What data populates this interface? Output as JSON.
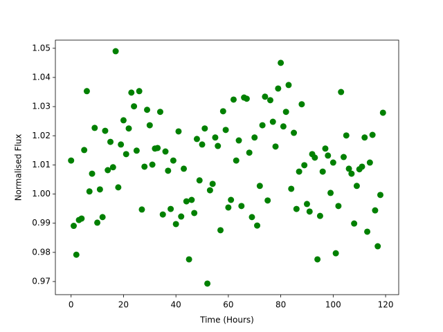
{
  "chart_data": {
    "type": "scatter",
    "color": "#008000",
    "xlabel": "Time (Hours)",
    "ylabel": "Normalised Flux",
    "x": [
      0,
      1,
      2,
      3,
      4,
      5,
      6,
      7,
      8,
      9,
      10,
      11,
      12,
      13,
      14,
      15,
      16,
      17,
      18,
      19,
      20,
      21,
      22,
      23,
      24,
      25,
      26,
      27,
      28,
      29,
      30,
      31,
      32,
      33,
      34,
      35,
      36,
      37,
      38,
      39,
      40,
      41,
      42,
      43,
      44,
      45,
      46,
      47,
      48,
      49,
      50,
      51,
      52,
      53,
      54,
      55,
      56,
      57,
      58,
      59,
      60,
      61,
      62,
      63,
      64,
      65,
      66,
      67,
      68,
      69,
      70,
      71,
      72,
      73,
      74,
      75,
      76,
      77,
      78,
      79,
      80,
      81,
      82,
      83,
      84,
      85,
      86,
      87,
      88,
      89,
      90,
      91,
      92,
      93,
      94,
      95,
      96,
      97,
      98,
      99,
      100,
      101,
      102,
      103,
      104,
      105,
      106,
      107,
      108,
      109,
      110,
      111,
      112,
      113,
      114,
      115,
      116,
      117,
      118,
      119
    ],
    "y": [
      1.0115,
      0.9891,
      0.9792,
      0.9911,
      0.9916,
      1.0151,
      1.0353,
      1.0009,
      1.007,
      1.0227,
      0.9902,
      1.0016,
      0.9921,
      1.0217,
      1.0082,
      1.0179,
      1.0092,
      1.049,
      1.0023,
      1.017,
      1.0253,
      1.0137,
      1.0225,
      1.0348,
      1.0301,
      1.0149,
      1.0353,
      0.9947,
      1.0094,
      1.0289,
      1.0236,
      1.0101,
      1.0156,
      1.0158,
      1.0282,
      0.993,
      1.0146,
      1.008,
      0.9949,
      1.0115,
      0.9897,
      1.0215,
      0.9923,
      1.0087,
      0.9975,
      0.9776,
      0.998,
      0.9935,
      1.0189,
      1.0047,
      1.017,
      1.0225,
      0.9693,
      1.0013,
      1.0035,
      1.0194,
      1.0165,
      0.9876,
      1.0284,
      1.022,
      0.9954,
      0.998,
      1.0324,
      1.0115,
      1.0184,
      0.9959,
      1.0331,
      1.0327,
      1.0142,
      0.9921,
      1.0194,
      0.9892,
      1.0028,
      1.0236,
      1.0334,
      0.9978,
      1.0322,
      1.0248,
      1.0163,
      1.0362,
      1.045,
      1.0232,
      1.0282,
      1.0374,
      1.0018,
      1.021,
      0.9949,
      1.0077,
      1.0308,
      1.0099,
      0.9966,
      0.994,
      1.0137,
      1.0125,
      0.9776,
      0.9925,
      1.0077,
      1.0156,
      1.0132,
      1.0004,
      1.0108,
      0.9797,
      0.9959,
      1.035,
      1.0127,
      1.0201,
      1.0087,
      1.007,
      0.9899,
      1.0028,
      1.0085,
      1.0094,
      1.0194,
      0.9871,
      1.0108,
      1.0203,
      0.9944,
      0.9821,
      0.9997,
      1.0279
    ],
    "xlim": [
      -6,
      125
    ],
    "ylim": [
      0.9655,
      1.0528
    ],
    "xticks": [
      0,
      20,
      40,
      60,
      80,
      100,
      120
    ],
    "yticks": [
      0.97,
      0.98,
      0.99,
      {
        "value": 1,
        "label": "1.00"
      },
      1.01,
      1.02,
      1.03,
      1.04,
      1.05
    ]
  }
}
